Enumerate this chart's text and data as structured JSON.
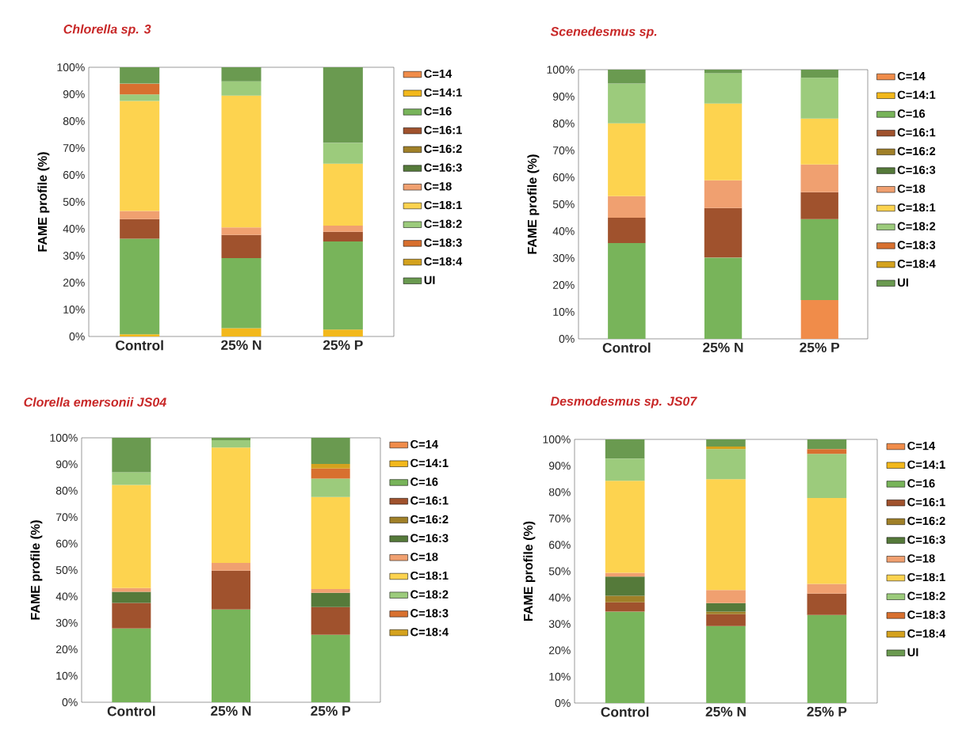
{
  "chart_data": [
    {
      "type": "bar",
      "stacked": true,
      "title": "Chlorella sp. 3",
      "ylabel": "FAME profile (%)",
      "categories": [
        "Control",
        "25% N",
        "25% P"
      ],
      "ylim": [
        0,
        100
      ],
      "yticks": [
        {
          "value": 0,
          "label": "0%"
        },
        {
          "value": 10,
          "label": "10%"
        },
        {
          "value": 20,
          "label": "20%"
        },
        {
          "value": 30,
          "label": "30%"
        },
        {
          "value": 40,
          "label": "40%"
        },
        {
          "value": 50,
          "label": "50%"
        },
        {
          "value": 60,
          "label": "60%"
        },
        {
          "value": 70,
          "label": "70%"
        },
        {
          "value": 80,
          "label": "80%"
        },
        {
          "value": 90,
          "label": "90%"
        },
        {
          "value": 100,
          "label": "100%"
        }
      ],
      "legend": "right",
      "grid": false,
      "series": [
        {
          "name": "C=14",
          "color": "#f08c4a",
          "values": [
            null,
            null,
            null
          ]
        },
        {
          "name": "C=14:1",
          "color": "#f2b81c",
          "values": [
            0.8,
            3.1,
            2.6
          ]
        },
        {
          "name": "C=16",
          "color": "#78b45a",
          "values": [
            35.5,
            26.0,
            32.7
          ]
        },
        {
          "name": "C=16:1",
          "color": "#a0522d",
          "values": [
            7.3,
            8.6,
            3.6
          ]
        },
        {
          "name": "C=16:2",
          "color": "#a08028",
          "values": [
            null,
            null,
            null
          ]
        },
        {
          "name": "C=16:3",
          "color": "#557a3a",
          "values": [
            null,
            null,
            null
          ]
        },
        {
          "name": "C=18",
          "color": "#f0a070",
          "values": [
            3.0,
            2.8,
            2.3
          ]
        },
        {
          "name": "C=18:1",
          "color": "#fdd34f",
          "values": [
            40.9,
            49.0,
            23.0
          ]
        },
        {
          "name": "C=18:2",
          "color": "#9ccb7c",
          "values": [
            2.4,
            5.3,
            7.7
          ]
        },
        {
          "name": "C=18:3",
          "color": "#d8702f",
          "values": [
            4.0,
            null,
            null
          ]
        },
        {
          "name": "C=18:4",
          "color": "#d4a21e",
          "values": [
            null,
            null,
            null
          ]
        },
        {
          "name": "UI",
          "color": "#6a9a50",
          "values": [
            6.1,
            5.2,
            28.1
          ]
        }
      ]
    },
    {
      "type": "bar",
      "stacked": true,
      "title": "Scenedesmus sp.",
      "ylabel": "FAME profile (%)",
      "categories": [
        "Control",
        "25% N",
        "25% P"
      ],
      "ylim": [
        0,
        100
      ],
      "yticks": [
        {
          "value": 0,
          "label": "0%"
        },
        {
          "value": 10,
          "label": "10%"
        },
        {
          "value": 20,
          "label": "20%"
        },
        {
          "value": 30,
          "label": "30%"
        },
        {
          "value": 40,
          "label": "40%"
        },
        {
          "value": 50,
          "label": "50%"
        },
        {
          "value": 60,
          "label": "60%"
        },
        {
          "value": 70,
          "label": "70%"
        },
        {
          "value": 80,
          "label": "80%"
        },
        {
          "value": 90,
          "label": "90%"
        },
        {
          "value": 100,
          "label": "100%"
        }
      ],
      "legend": "right",
      "grid": false,
      "series": [
        {
          "name": "C=14",
          "color": "#f08c4a",
          "values": [
            null,
            null,
            14.4
          ]
        },
        {
          "name": "C=14:1",
          "color": "#f2b81c",
          "values": [
            null,
            null,
            null
          ]
        },
        {
          "name": "C=16",
          "color": "#78b45a",
          "values": [
            35.6,
            30.2,
            30.1
          ]
        },
        {
          "name": "C=16:1",
          "color": "#a0522d",
          "values": [
            9.4,
            18.4,
            10.0
          ]
        },
        {
          "name": "C=16:2",
          "color": "#a08028",
          "values": [
            null,
            null,
            null
          ]
        },
        {
          "name": "C=16:3",
          "color": "#557a3a",
          "values": [
            null,
            null,
            null
          ]
        },
        {
          "name": "C=18",
          "color": "#f0a070",
          "values": [
            8.0,
            10.3,
            10.3
          ]
        },
        {
          "name": "C=18:1",
          "color": "#fdd34f",
          "values": [
            27.1,
            28.5,
            17.0
          ]
        },
        {
          "name": "C=18:2",
          "color": "#9ccb7c",
          "values": [
            14.7,
            11.3,
            15.2
          ]
        },
        {
          "name": "C=18:3",
          "color": "#d8702f",
          "values": [
            null,
            null,
            null
          ]
        },
        {
          "name": "C=18:4",
          "color": "#d4a21e",
          "values": [
            null,
            null,
            null
          ]
        },
        {
          "name": "UI",
          "color": "#6a9a50",
          "values": [
            5.2,
            1.3,
            3.0
          ]
        }
      ]
    },
    {
      "type": "bar",
      "stacked": true,
      "title": "Clorella emersonii JS04",
      "ylabel": "FAME profile (%)",
      "categories": [
        "Control",
        "25% N",
        "25% P"
      ],
      "ylim": [
        0,
        100
      ],
      "yticks": [
        {
          "value": 0,
          "label": "0%"
        },
        {
          "value": 10,
          "label": "10%"
        },
        {
          "value": 20,
          "label": "20%"
        },
        {
          "value": 30,
          "label": "30%"
        },
        {
          "value": 40,
          "label": "40%"
        },
        {
          "value": 50,
          "label": "50%"
        },
        {
          "value": 60,
          "label": "60%"
        },
        {
          "value": 70,
          "label": "70%"
        },
        {
          "value": 80,
          "label": "80%"
        },
        {
          "value": 90,
          "label": "90%"
        },
        {
          "value": 100,
          "label": "100%"
        }
      ],
      "legend": "right",
      "grid": false,
      "series": [
        {
          "name": "C=14",
          "color": "#f08c4a",
          "values": [
            null,
            null,
            null
          ]
        },
        {
          "name": "C=14:1",
          "color": "#f2b81c",
          "values": [
            null,
            null,
            null
          ]
        },
        {
          "name": "C=16",
          "color": "#78b45a",
          "values": [
            27.9,
            35.1,
            25.5
          ]
        },
        {
          "name": "C=16:1",
          "color": "#a0522d",
          "values": [
            9.7,
            14.7,
            10.5
          ]
        },
        {
          "name": "C=16:2",
          "color": "#a08028",
          "values": [
            null,
            null,
            null
          ]
        },
        {
          "name": "C=16:3",
          "color": "#557a3a",
          "values": [
            4.2,
            null,
            5.4
          ]
        },
        {
          "name": "C=18",
          "color": "#f0a070",
          "values": [
            1.4,
            2.9,
            1.4
          ]
        },
        {
          "name": "C=18:1",
          "color": "#fdd34f",
          "values": [
            39.0,
            43.6,
            34.8
          ]
        },
        {
          "name": "C=18:2",
          "color": "#9ccb7c",
          "values": [
            4.8,
            2.8,
            7.0
          ]
        },
        {
          "name": "C=18:3",
          "color": "#d8702f",
          "values": [
            null,
            null,
            3.8
          ]
        },
        {
          "name": "C=18:4",
          "color": "#d4a21e",
          "values": [
            null,
            null,
            1.7
          ]
        },
        {
          "color": "#6a9a50",
          "values": [
            13.0,
            0.9,
            9.9
          ]
        }
      ]
    },
    {
      "type": "bar",
      "stacked": true,
      "title": "Desmodesmus sp. JS07",
      "ylabel": "FAME profile (%)",
      "categories": [
        "Control",
        "25% N",
        "25% P"
      ],
      "ylim": [
        0,
        100
      ],
      "yticks": [
        {
          "value": 0,
          "label": "0%"
        },
        {
          "value": 10,
          "label": "10%"
        },
        {
          "value": 20,
          "label": "20%"
        },
        {
          "value": 30,
          "label": "30%"
        },
        {
          "value": 40,
          "label": "40%"
        },
        {
          "value": 50,
          "label": "50%"
        },
        {
          "value": 60,
          "label": "60%"
        },
        {
          "value": 70,
          "label": "70%"
        },
        {
          "value": 80,
          "label": "80%"
        },
        {
          "value": 90,
          "label": "90%"
        },
        {
          "value": 100,
          "label": "100%"
        }
      ],
      "legend": "right",
      "grid": false,
      "series": [
        {
          "name": "C=14",
          "color": "#f08c4a",
          "values": [
            null,
            null,
            null
          ]
        },
        {
          "name": "C=14:1",
          "color": "#f2b81c",
          "values": [
            null,
            null,
            null
          ]
        },
        {
          "name": "C=16",
          "color": "#78b45a",
          "values": [
            34.7,
            29.2,
            33.4
          ]
        },
        {
          "name": "C=16:1",
          "color": "#a0522d",
          "values": [
            3.5,
            4.5,
            8.1
          ]
        },
        {
          "name": "C=16:2",
          "color": "#a08028",
          "values": [
            2.5,
            1.0,
            null
          ]
        },
        {
          "name": "C=16:3",
          "color": "#557a3a",
          "values": [
            7.3,
            3.2,
            null
          ]
        },
        {
          "name": "C=18",
          "color": "#f0a070",
          "values": [
            1.4,
            5.0,
            3.7
          ]
        },
        {
          "name": "C=18:1",
          "color": "#fdd34f",
          "values": [
            34.9,
            42.0,
            32.6
          ]
        },
        {
          "name": "C=18:2",
          "color": "#9ccb7c",
          "values": [
            8.4,
            11.4,
            16.7
          ]
        },
        {
          "name": "C=18:3",
          "color": "#d8702f",
          "values": [
            null,
            null,
            1.8
          ]
        },
        {
          "name": "C=18:4",
          "color": "#d4a21e",
          "values": [
            null,
            1.0,
            null
          ]
        },
        {
          "name": "UI",
          "color": "#6a9a50",
          "values": [
            7.3,
            2.7,
            3.7
          ]
        }
      ]
    }
  ]
}
